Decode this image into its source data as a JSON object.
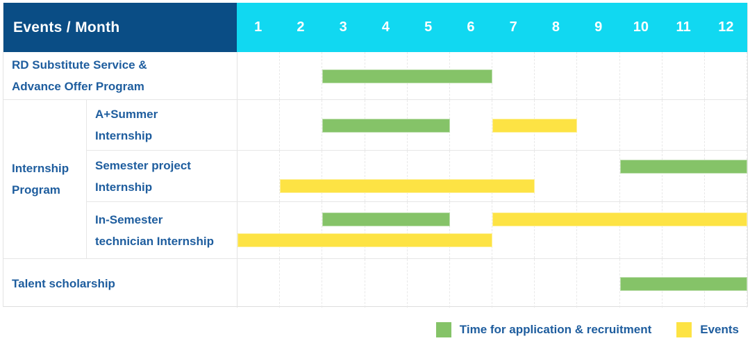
{
  "colors": {
    "header_bg": "#0a4d85",
    "month_strip_bg": "#11d8f1",
    "green": "#85c368",
    "yellow": "#fde344",
    "label_text": "#1e5d9e"
  },
  "chart_data": {
    "type": "bar",
    "subtype": "gantt",
    "title": "Events / Month",
    "x_axis": {
      "unit": "month",
      "ticks": [
        "1",
        "2",
        "3",
        "4",
        "5",
        "6",
        "7",
        "8",
        "9",
        "10",
        "11",
        "12"
      ],
      "range": [
        1,
        12
      ],
      "grid": "dashed-vertical"
    },
    "legend_position": "bottom-right",
    "legend": [
      {
        "series": "Time for application & recruitment",
        "color": "#85c368"
      },
      {
        "series": "Events",
        "color": "#fde344"
      }
    ],
    "group_labels": [
      {
        "label_lines": [
          "Internship",
          "Program"
        ],
        "rows_spanned": [
          "A+Summer Internship",
          "Semester project Internship",
          "In-Semester technician Internship"
        ]
      }
    ],
    "rows": [
      {
        "label_lines": [
          "RD Substitute Service &",
          "Advance Offer Program"
        ],
        "group": null,
        "bars": [
          {
            "series": "Time for application & recruitment",
            "color": "green",
            "start_month": 3,
            "end_month": 6,
            "lane": "mid"
          }
        ]
      },
      {
        "label_lines": [
          "A+Summer",
          "Internship"
        ],
        "group": "Internship Program",
        "bars": [
          {
            "series": "Time for application & recruitment",
            "color": "green",
            "start_month": 3,
            "end_month": 5,
            "lane": "mid"
          },
          {
            "series": "Events",
            "color": "yellow",
            "start_month": 7,
            "end_month": 8,
            "lane": "mid"
          }
        ]
      },
      {
        "label_lines": [
          "Semester project",
          "Internship"
        ],
        "group": "Internship Program",
        "bars": [
          {
            "series": "Time for application & recruitment",
            "color": "green",
            "start_month": 10,
            "end_month": 12,
            "lane": "top"
          },
          {
            "series": "Events",
            "color": "yellow",
            "start_month": 2,
            "end_month": 7,
            "lane": "bottom"
          }
        ]
      },
      {
        "label_lines": [
          "In-Semester",
          "technician Internship"
        ],
        "group": "Internship Program",
        "bars": [
          {
            "series": "Time for application & recruitment",
            "color": "green",
            "start_month": 3,
            "end_month": 5,
            "lane": "top"
          },
          {
            "series": "Events",
            "color": "yellow",
            "start_month": 7,
            "end_month": 12,
            "lane": "top"
          },
          {
            "series": "Events",
            "color": "yellow",
            "start_month": 1,
            "end_month": 6,
            "lane": "bottom"
          }
        ]
      },
      {
        "label_lines": [
          "Talent scholarship"
        ],
        "group": null,
        "bars": [
          {
            "series": "Time for application & recruitment",
            "color": "green",
            "start_month": 10,
            "end_month": 12,
            "lane": "mid"
          }
        ]
      }
    ]
  }
}
